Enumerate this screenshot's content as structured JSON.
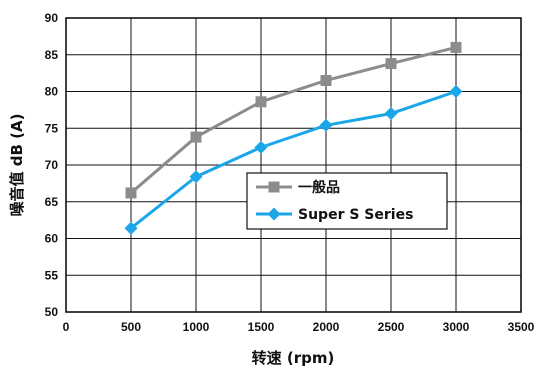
{
  "chart_data": {
    "type": "line",
    "xlabel": "转速 (rpm)",
    "ylabel": "噪音值  dB (A)",
    "xlim": [
      0,
      3500
    ],
    "ylim": [
      50,
      90
    ],
    "xticks": [
      0,
      500,
      1000,
      1500,
      2000,
      2500,
      3000,
      3500
    ],
    "yticks": [
      50,
      55,
      60,
      65,
      70,
      75,
      80,
      85,
      90
    ],
    "grid": true,
    "legend_position": "center-right",
    "series": [
      {
        "name": "一般品",
        "color": "#8c8c8c",
        "marker": "square",
        "x": [
          500,
          1000,
          1500,
          2000,
          2500,
          3000
        ],
        "y": [
          66.2,
          73.8,
          78.6,
          81.5,
          83.8,
          86.0
        ]
      },
      {
        "name": "Super S Series",
        "color": "#1ba6e8",
        "marker": "diamond",
        "x": [
          500,
          1000,
          1500,
          2000,
          2500,
          3000
        ],
        "y": [
          61.4,
          68.4,
          72.4,
          75.4,
          77.0,
          80.0
        ]
      }
    ]
  }
}
